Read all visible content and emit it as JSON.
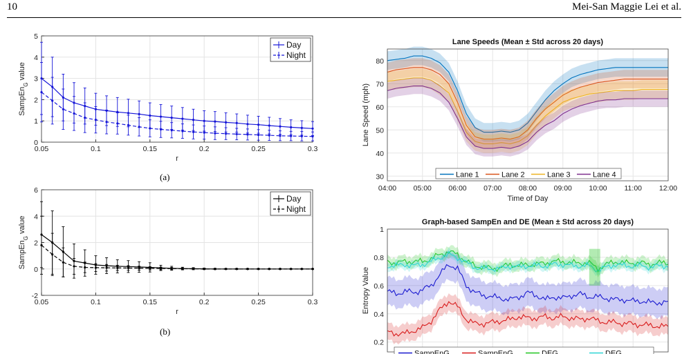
{
  "header": {
    "page_number": "10",
    "authors": "Mei-San Maggie Lei et al."
  },
  "captions": {
    "a": "(a)",
    "b": "(b)"
  },
  "chart_data": [
    {
      "id": "a",
      "type": "line",
      "x_ticks": [
        "0.05",
        "0.1",
        "0.15",
        "0.2",
        "0.25",
        "0.3"
      ],
      "y_ticks": [
        "0",
        "1",
        "2",
        "3",
        "4",
        "5"
      ],
      "xlabel": "r",
      "ylabel": "SampEn",
      "ylabel_sub": "G",
      "ylabel_tail": " value",
      "xlim": [
        0.05,
        0.3
      ],
      "ylim": [
        0,
        5
      ],
      "grid": true,
      "legend": "top-right",
      "colors": {
        "series": "#1414d8"
      },
      "x": [
        0.05,
        0.06,
        0.07,
        0.08,
        0.09,
        0.1,
        0.11,
        0.12,
        0.13,
        0.14,
        0.15,
        0.16,
        0.17,
        0.18,
        0.19,
        0.2,
        0.21,
        0.22,
        0.23,
        0.24,
        0.25,
        0.26,
        0.27,
        0.28,
        0.29,
        0.3
      ],
      "series": [
        {
          "name": "Day",
          "style": "solid",
          "values": [
            3.0,
            2.6,
            2.1,
            1.85,
            1.7,
            1.55,
            1.48,
            1.42,
            1.37,
            1.32,
            1.25,
            1.2,
            1.15,
            1.1,
            1.05,
            1.0,
            0.97,
            0.93,
            0.9,
            0.85,
            0.82,
            0.78,
            0.74,
            0.7,
            0.67,
            0.64
          ],
          "err": [
            1.7,
            1.4,
            1.1,
            0.95,
            0.85,
            0.75,
            0.7,
            0.68,
            0.65,
            0.62,
            0.6,
            0.57,
            0.55,
            0.53,
            0.5,
            0.48,
            0.47,
            0.45,
            0.43,
            0.42,
            0.4,
            0.39,
            0.37,
            0.35,
            0.34,
            0.33
          ]
        },
        {
          "name": "Night",
          "style": "dashed",
          "values": [
            2.35,
            1.95,
            1.55,
            1.35,
            1.15,
            1.05,
            0.95,
            0.88,
            0.8,
            0.72,
            0.65,
            0.6,
            0.56,
            0.52,
            0.48,
            0.45,
            0.42,
            0.4,
            0.38,
            0.36,
            0.34,
            0.32,
            0.3,
            0.29,
            0.28,
            0.27
          ],
          "err": [
            1.4,
            1.1,
            0.95,
            0.8,
            0.7,
            0.62,
            0.56,
            0.5,
            0.47,
            0.43,
            0.4,
            0.38,
            0.36,
            0.34,
            0.33,
            0.31,
            0.3,
            0.28,
            0.27,
            0.26,
            0.25,
            0.24,
            0.23,
            0.22,
            0.22,
            0.21
          ]
        }
      ]
    },
    {
      "id": "b",
      "type": "line",
      "x_ticks": [
        "0.05",
        "0.1",
        "0.15",
        "0.2",
        "0.25",
        "0.3"
      ],
      "y_ticks": [
        "-2",
        "0",
        "2",
        "4",
        "6"
      ],
      "xlabel": "r",
      "ylabel": "SampEn",
      "ylabel_sub": "G",
      "ylabel_tail": " value",
      "xlim": [
        0.05,
        0.3
      ],
      "ylim": [
        -2,
        6
      ],
      "grid": true,
      "legend": "top-right",
      "colors": {
        "series": "#000000"
      },
      "x": [
        0.05,
        0.06,
        0.07,
        0.08,
        0.09,
        0.1,
        0.11,
        0.12,
        0.13,
        0.14,
        0.15,
        0.16,
        0.17,
        0.18,
        0.19,
        0.2,
        0.21,
        0.22,
        0.23,
        0.24,
        0.25,
        0.26,
        0.27,
        0.28,
        0.29,
        0.3
      ],
      "series": [
        {
          "name": "Day",
          "style": "solid",
          "values": [
            2.6,
            2.0,
            1.3,
            0.6,
            0.45,
            0.3,
            0.25,
            0.2,
            0.18,
            0.15,
            0.12,
            0.08,
            0.05,
            0.03,
            0.02,
            0.01,
            0.0,
            0.0,
            0.0,
            0.0,
            0.0,
            0.0,
            0.0,
            0.0,
            0.0,
            0.0
          ],
          "err": [
            2.5,
            2.4,
            1.9,
            1.3,
            1.0,
            0.7,
            0.6,
            0.5,
            0.45,
            0.4,
            0.35,
            0.2,
            0.15,
            0.1,
            0.08,
            0.06,
            0.05,
            0.04,
            0.04,
            0.03,
            0.03,
            0.03,
            0.03,
            0.02,
            0.02,
            0.02
          ]
        },
        {
          "name": "Night",
          "style": "dashed",
          "values": [
            1.8,
            1.1,
            0.5,
            0.2,
            0.12,
            0.1,
            0.09,
            0.08,
            0.07,
            0.06,
            0.05,
            0.04,
            0.03,
            0.02,
            0.01,
            0.0,
            0.0,
            0.0,
            0.0,
            0.0,
            0.0,
            0.0,
            0.0,
            0.0,
            0.0,
            0.0
          ],
          "err": [
            2.2,
            1.6,
            1.1,
            0.6,
            0.4,
            0.3,
            0.25,
            0.2,
            0.18,
            0.15,
            0.12,
            0.1,
            0.08,
            0.06,
            0.05,
            0.04,
            0.04,
            0.03,
            0.03,
            0.03,
            0.02,
            0.02,
            0.02,
            0.02,
            0.02,
            0.02
          ]
        }
      ]
    },
    {
      "id": "c",
      "type": "line",
      "title": "Lane Speeds (Mean ± Std across 20 days)",
      "xlabel": "Time of Day",
      "ylabel": "Lane Speed (mph)",
      "x_ticks": [
        "04:00",
        "05:00",
        "06:00",
        "07:00",
        "08:00",
        "09:00",
        "10:00",
        "11:00",
        "12:00"
      ],
      "y_ticks": [
        "30",
        "40",
        "50",
        "60",
        "70",
        "80"
      ],
      "xlim": [
        "04:00",
        "12:00"
      ],
      "ylim": [
        28,
        85
      ],
      "grid": true,
      "legend": "bottom, horizontal",
      "x": [
        "04:00",
        "04:15",
        "04:30",
        "04:45",
        "05:00",
        "05:15",
        "05:30",
        "05:45",
        "06:00",
        "06:15",
        "06:30",
        "06:45",
        "07:00",
        "07:15",
        "07:30",
        "07:45",
        "08:00",
        "08:15",
        "08:30",
        "08:45",
        "09:00",
        "09:15",
        "09:30",
        "09:45",
        "10:00",
        "10:15",
        "10:30",
        "10:45",
        "11:00",
        "11:15",
        "11:30",
        "11:45",
        "12:00"
      ],
      "series": [
        {
          "name": "Lane 1",
          "color": "#0072bd",
          "std": 4,
          "values": [
            80,
            80.5,
            81,
            82,
            82,
            81,
            79,
            75,
            67,
            57,
            51,
            49,
            49,
            49.5,
            49,
            50,
            53,
            58,
            63,
            67,
            70,
            72.5,
            74,
            75,
            76,
            76.5,
            77,
            77,
            77,
            77,
            77,
            77,
            77
          ]
        },
        {
          "name": "Lane 2",
          "color": "#d95319",
          "std": 4,
          "values": [
            75,
            76,
            76.5,
            77,
            77,
            76,
            74,
            70,
            62,
            52,
            47,
            46,
            46,
            46.5,
            46,
            47,
            50,
            55,
            59,
            62,
            65,
            67,
            68.5,
            69.5,
            70.5,
            71,
            71.5,
            72,
            72,
            72,
            72,
            72,
            72
          ]
        },
        {
          "name": "Lane 3",
          "color": "#edb120",
          "std": 4,
          "values": [
            71,
            71.5,
            72,
            72.5,
            72.5,
            71.5,
            69,
            66,
            58,
            49,
            45,
            44,
            44,
            44.5,
            44,
            45,
            47.5,
            52,
            56,
            59,
            62,
            63.5,
            64.5,
            65.5,
            66,
            66.5,
            67,
            67,
            67,
            67.5,
            67.5,
            67.5,
            67.5
          ]
        },
        {
          "name": "Lane 4",
          "color": "#7e2f8e",
          "std": 3.5,
          "values": [
            67,
            68,
            68.5,
            69,
            69,
            68,
            66,
            62,
            55,
            47,
            43,
            42,
            42,
            42.5,
            42,
            43,
            45,
            49,
            52,
            54,
            57,
            59,
            60.5,
            61.5,
            62.5,
            63,
            63,
            63.5,
            63.5,
            63.5,
            63.5,
            63.5,
            63.5
          ]
        }
      ]
    },
    {
      "id": "d",
      "type": "line",
      "title": "Graph-based SampEn and DE (Mean ± Std across 20 days)",
      "ylabel": "Entropy Value",
      "y_ticks": [
        "0.2",
        "0.4",
        "0.6",
        "0.8",
        "1"
      ],
      "ylim": [
        0.13,
        1.0
      ],
      "grid": true,
      "legend": "bottom, horizontal",
      "x": [
        "04:00",
        "04:15",
        "04:30",
        "04:45",
        "05:00",
        "05:15",
        "05:30",
        "05:45",
        "06:00",
        "06:15",
        "06:30",
        "06:45",
        "07:00",
        "07:15",
        "07:30",
        "07:45",
        "08:00",
        "08:15",
        "08:30",
        "08:45",
        "09:00",
        "09:15",
        "09:30",
        "09:45",
        "10:00",
        "10:15",
        "10:30",
        "10:45",
        "11:00",
        "11:15",
        "11:30",
        "11:45",
        "12:00"
      ],
      "series": [
        {
          "name": "SampEnG",
          "color": "#1a1ad0",
          "std": 0.1,
          "values": [
            0.56,
            0.54,
            0.56,
            0.55,
            0.57,
            0.6,
            0.68,
            0.75,
            0.72,
            0.6,
            0.55,
            0.53,
            0.52,
            0.51,
            0.5,
            0.52,
            0.55,
            0.53,
            0.5,
            0.52,
            0.51,
            0.53,
            0.54,
            0.52,
            0.52,
            0.51,
            0.5,
            0.5,
            0.49,
            0.49,
            0.48,
            0.48,
            0.48
          ]
        },
        {
          "name": "SampEnG",
          "color": "#d81c1c",
          "std": 0.06,
          "values": [
            0.27,
            0.26,
            0.26,
            0.28,
            0.3,
            0.35,
            0.43,
            0.49,
            0.45,
            0.36,
            0.33,
            0.33,
            0.34,
            0.35,
            0.36,
            0.38,
            0.37,
            0.37,
            0.38,
            0.37,
            0.38,
            0.37,
            0.36,
            0.37,
            0.35,
            0.34,
            0.34,
            0.33,
            0.33,
            0.32,
            0.32,
            0.31,
            0.31
          ]
        },
        {
          "name": "DEG",
          "color": "#22c722",
          "std": 0.04,
          "values": [
            0.77,
            0.76,
            0.77,
            0.77,
            0.77,
            0.79,
            0.82,
            0.84,
            0.82,
            0.77,
            0.74,
            0.73,
            0.72,
            0.73,
            0.75,
            0.74,
            0.75,
            0.75,
            0.76,
            0.77,
            0.77,
            0.76,
            0.76,
            0.76,
            0.72,
            0.75,
            0.77,
            0.76,
            0.76,
            0.76,
            0.75,
            0.76,
            0.76
          ]
        },
        {
          "name": "DEG",
          "color": "#2fd6d6",
          "std": 0.03,
          "values": [
            0.74,
            0.74,
            0.75,
            0.74,
            0.75,
            0.77,
            0.8,
            0.82,
            0.8,
            0.76,
            0.73,
            0.72,
            0.72,
            0.72,
            0.74,
            0.73,
            0.74,
            0.74,
            0.74,
            0.75,
            0.75,
            0.74,
            0.74,
            0.74,
            0.71,
            0.73,
            0.75,
            0.74,
            0.74,
            0.74,
            0.73,
            0.74,
            0.74
          ]
        }
      ]
    }
  ]
}
